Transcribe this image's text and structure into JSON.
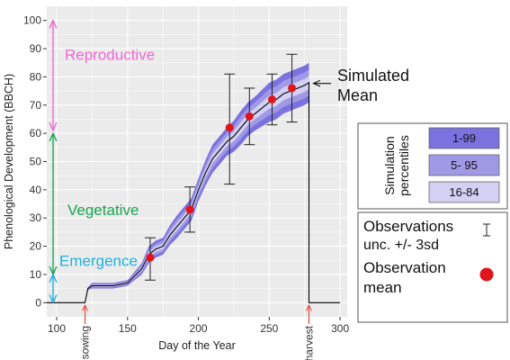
{
  "chart_data": {
    "type": "line",
    "xlabel": "Day of the Year",
    "ylabel": "Phenological Development (BBCH)",
    "xlim": [
      93,
      305
    ],
    "ylim": [
      -5,
      105
    ],
    "xticks": [
      "100",
      "150",
      "200",
      "250",
      "300"
    ],
    "yticks": [
      "0",
      "10",
      "20",
      "30",
      "40",
      "50",
      "60",
      "70",
      "80",
      "90",
      "100"
    ],
    "grid": true,
    "series": [
      {
        "name": "Simulated Mean",
        "x": [
          93,
          120,
          122,
          125,
          130,
          140,
          150,
          160,
          165,
          170,
          175,
          180,
          185,
          190,
          195,
          200,
          205,
          210,
          215,
          220,
          225,
          230,
          235,
          240,
          245,
          250,
          255,
          260,
          265,
          270,
          275,
          278
        ],
        "y": [
          0,
          0,
          5,
          6,
          6,
          6,
          7,
          12,
          17,
          19,
          20,
          24,
          27,
          30,
          33,
          40,
          46,
          51,
          54,
          57,
          59,
          62,
          65,
          67,
          69,
          71,
          72,
          74,
          75,
          76,
          77,
          78
        ]
      }
    ],
    "harvest_drop": {
      "x": 278,
      "y_top": 78,
      "y_bottom": 0,
      "end_x": 300
    },
    "percentile_bands": [
      {
        "range": "1-99",
        "color": "#7b72df",
        "lower_offset": [
          0,
          0,
          -0.5,
          -1,
          -1,
          -1,
          -1,
          -2,
          -3,
          -3,
          -3,
          -3.5,
          -4,
          -4,
          -4,
          -4,
          -4.5,
          -5,
          -5,
          -5,
          -5.5,
          -6,
          -6,
          -6,
          -6.5,
          -7,
          -7,
          -7,
          -7,
          -7,
          -7,
          -7
        ],
        "upper_offset": [
          0,
          0,
          0.5,
          1,
          1,
          1,
          1,
          2,
          3,
          3,
          3,
          3.5,
          4,
          4,
          4,
          4,
          4.5,
          5,
          5,
          5,
          5.5,
          6,
          6,
          6,
          6.5,
          7,
          7,
          7,
          7,
          7,
          7,
          7
        ]
      },
      {
        "range": "5- 95",
        "color": "#9f99e6",
        "lower_offset": [
          0,
          0,
          -0.3,
          -0.6,
          -0.6,
          -0.6,
          -0.6,
          -1.3,
          -2,
          -2,
          -2,
          -2.3,
          -2.6,
          -2.6,
          -2.6,
          -2.6,
          -3,
          -3.3,
          -3.3,
          -3.3,
          -3.6,
          -4,
          -4,
          -4,
          -4.3,
          -4.6,
          -4.6,
          -4.6,
          -4.6,
          -4.6,
          -4.6,
          -4.6
        ],
        "upper_offset": [
          0,
          0,
          0.3,
          0.6,
          0.6,
          0.6,
          0.6,
          1.3,
          2,
          2,
          2,
          2.3,
          2.6,
          2.6,
          2.6,
          2.6,
          3,
          3.3,
          3.3,
          3.3,
          3.6,
          4,
          4,
          4,
          4.3,
          4.6,
          4.6,
          4.6,
          4.6,
          4.6,
          4.6,
          4.6
        ]
      },
      {
        "range": "16-84",
        "color": "#d3d0f3",
        "lower_offset": [
          0,
          0,
          -0.15,
          -0.3,
          -0.3,
          -0.3,
          -0.3,
          -0.6,
          -1,
          -1,
          -1,
          -1.1,
          -1.3,
          -1.3,
          -1.3,
          -1.3,
          -1.5,
          -1.6,
          -1.6,
          -1.6,
          -1.8,
          -2,
          -2,
          -2,
          -2.1,
          -2.3,
          -2.3,
          -2.3,
          -2.3,
          -2.3,
          -2.3,
          -2.3
        ],
        "upper_offset": [
          0,
          0,
          0.15,
          0.3,
          0.3,
          0.3,
          0.3,
          0.6,
          1,
          1,
          1,
          1.1,
          1.3,
          1.3,
          1.3,
          1.3,
          1.5,
          1.6,
          1.6,
          1.6,
          1.8,
          2,
          2,
          2,
          2.1,
          2.3,
          2.3,
          2.3,
          2.3,
          2.3,
          2.3,
          2.3
        ]
      }
    ],
    "observations": [
      {
        "x": 166,
        "mean": 16,
        "low": 8,
        "high": 23
      },
      {
        "x": 194,
        "mean": 33,
        "low": 25,
        "high": 41
      },
      {
        "x": 222,
        "mean": 62,
        "low": 42,
        "high": 81
      },
      {
        "x": 236,
        "mean": 66,
        "low": 56,
        "high": 76
      },
      {
        "x": 252,
        "mean": 72,
        "low": 63,
        "high": 81
      },
      {
        "x": 266,
        "mean": 76,
        "low": 64,
        "high": 88
      }
    ],
    "stages": [
      {
        "label": "Reproductive",
        "from": 61,
        "to": 100,
        "color": "#ec6ad2",
        "label_y": 88
      },
      {
        "label": "Vegetative",
        "from": 10,
        "to": 60,
        "color": "#1aa552",
        "label_y": 33
      },
      {
        "label": "Emergence",
        "from": 0,
        "to": 10,
        "color": "#1fb0de",
        "label_y": 15
      }
    ],
    "events": [
      {
        "label": "sowing",
        "x": 120
      },
      {
        "label": "harvest",
        "x": 278
      }
    ],
    "annotation": {
      "line1": "Simulated",
      "line2": "Mean",
      "target_x": 278,
      "target_y": 78
    },
    "legend": {
      "placement": "right",
      "percentiles": {
        "title_line1": "Simulation",
        "title_line2": "percentiles",
        "items": [
          "1-99",
          "5- 95",
          "16-84"
        ]
      },
      "observations": {
        "unc_line1": "Observations",
        "unc_line2": "unc. +/- 3sd",
        "mean_line1": "Observation",
        "mean_line2": "mean"
      }
    },
    "colors": {
      "panel": "#ebebeb",
      "grid": "#ffffff",
      "mean_line": "#000000",
      "obs_point": "#e0141b",
      "event_arrow": "#e8443a"
    }
  }
}
